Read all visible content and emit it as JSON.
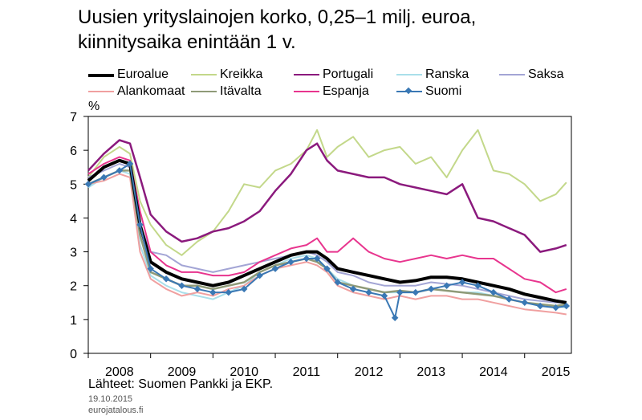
{
  "title_line1": "Uusien yrityslainojen korko, 0,25–1 milj. euroa,",
  "title_line2": "kiinnitysaika enintään 1 v.",
  "source": "Lähteet: Suomen Pankki ja EKP.",
  "date": "19.10.2015",
  "site": "eurojatalous.fi",
  "chart_data": {
    "type": "line",
    "ylabel": "%",
    "ylim": [
      0,
      7
    ],
    "yticks": [
      "0",
      "1",
      "2",
      "3",
      "4",
      "5",
      "6",
      "7"
    ],
    "xlim": [
      2008.0,
      2015.75
    ],
    "xticks": [
      "2008",
      "2009",
      "2010",
      "2011",
      "2012",
      "2013",
      "2014",
      "2015"
    ],
    "grid": false,
    "legend": "top",
    "series": [
      {
        "name": "Euroalue",
        "color": "#000000",
        "width": 4,
        "marker": false,
        "x": [
          2008.0,
          2008.25,
          2008.5,
          2008.67,
          2008.83,
          2009.0,
          2009.25,
          2009.5,
          2009.75,
          2010.0,
          2010.25,
          2010.5,
          2010.75,
          2011.0,
          2011.25,
          2011.5,
          2011.67,
          2011.83,
          2012.0,
          2012.25,
          2012.5,
          2012.75,
          2013.0,
          2013.25,
          2013.5,
          2013.75,
          2014.0,
          2014.25,
          2014.5,
          2014.75,
          2015.0,
          2015.25,
          2015.5,
          2015.67
        ],
        "y": [
          5.1,
          5.5,
          5.7,
          5.6,
          3.8,
          2.7,
          2.4,
          2.2,
          2.1,
          2.0,
          2.1,
          2.3,
          2.5,
          2.7,
          2.9,
          3.0,
          3.0,
          2.8,
          2.5,
          2.4,
          2.3,
          2.2,
          2.1,
          2.15,
          2.25,
          2.25,
          2.2,
          2.1,
          2.0,
          1.9,
          1.75,
          1.65,
          1.55,
          1.5
        ]
      },
      {
        "name": "Kreikka",
        "color": "#c3d88a",
        "width": 2,
        "marker": false,
        "x": [
          2008.0,
          2008.25,
          2008.5,
          2008.67,
          2008.83,
          2009.0,
          2009.25,
          2009.5,
          2009.75,
          2010.0,
          2010.25,
          2010.5,
          2010.75,
          2011.0,
          2011.25,
          2011.5,
          2011.67,
          2011.83,
          2012.0,
          2012.25,
          2012.5,
          2012.75,
          2013.0,
          2013.25,
          2013.5,
          2013.75,
          2014.0,
          2014.25,
          2014.5,
          2014.75,
          2015.0,
          2015.25,
          2015.5,
          2015.67
        ],
        "y": [
          5.2,
          5.8,
          6.1,
          5.9,
          4.5,
          3.8,
          3.2,
          2.9,
          3.3,
          3.6,
          4.2,
          5.0,
          4.9,
          5.4,
          5.6,
          6.0,
          6.6,
          5.8,
          6.1,
          6.4,
          5.8,
          6.0,
          6.1,
          5.6,
          5.8,
          5.2,
          6.0,
          6.6,
          5.4,
          5.3,
          5.0,
          4.5,
          4.7,
          5.05
        ]
      },
      {
        "name": "Portugali",
        "color": "#8b1a7d",
        "width": 2.5,
        "marker": false,
        "x": [
          2008.0,
          2008.25,
          2008.5,
          2008.67,
          2008.83,
          2009.0,
          2009.25,
          2009.5,
          2009.75,
          2010.0,
          2010.25,
          2010.5,
          2010.75,
          2011.0,
          2011.25,
          2011.5,
          2011.67,
          2011.83,
          2012.0,
          2012.25,
          2012.5,
          2012.75,
          2013.0,
          2013.25,
          2013.5,
          2013.75,
          2014.0,
          2014.25,
          2014.5,
          2014.75,
          2015.0,
          2015.25,
          2015.5,
          2015.67
        ],
        "y": [
          5.4,
          5.9,
          6.3,
          6.2,
          5.2,
          4.1,
          3.6,
          3.3,
          3.4,
          3.6,
          3.7,
          3.9,
          4.2,
          4.8,
          5.3,
          6.0,
          6.2,
          5.7,
          5.4,
          5.3,
          5.2,
          5.2,
          5.0,
          4.9,
          4.8,
          4.7,
          5.0,
          4.0,
          3.9,
          3.7,
          3.5,
          3.0,
          3.1,
          3.2
        ]
      },
      {
        "name": "Ranska",
        "color": "#a9dfea",
        "width": 2,
        "marker": false,
        "x": [
          2008.0,
          2008.25,
          2008.5,
          2008.67,
          2008.83,
          2009.0,
          2009.25,
          2009.5,
          2009.75,
          2010.0,
          2010.25,
          2010.5,
          2010.75,
          2011.0,
          2011.25,
          2011.5,
          2011.67,
          2011.83,
          2012.0,
          2012.25,
          2012.5,
          2012.75,
          2013.0,
          2013.25,
          2013.5,
          2013.75,
          2014.0,
          2014.25,
          2014.5,
          2014.75,
          2015.0,
          2015.25,
          2015.5,
          2015.67
        ],
        "y": [
          4.9,
          5.2,
          5.4,
          5.3,
          3.2,
          2.3,
          2.0,
          1.8,
          1.7,
          1.6,
          1.8,
          2.0,
          2.4,
          2.6,
          2.8,
          2.9,
          2.8,
          2.5,
          2.2,
          2.0,
          1.9,
          1.8,
          1.8,
          1.8,
          1.9,
          1.85,
          1.8,
          1.8,
          1.7,
          1.6,
          1.5,
          1.45,
          1.4,
          1.35
        ]
      },
      {
        "name": "Saksa",
        "color": "#a3a5d5",
        "width": 2,
        "marker": false,
        "x": [
          2008.0,
          2008.25,
          2008.5,
          2008.67,
          2008.83,
          2009.0,
          2009.25,
          2009.5,
          2009.75,
          2010.0,
          2010.25,
          2010.5,
          2010.75,
          2011.0,
          2011.25,
          2011.5,
          2011.67,
          2011.83,
          2012.0,
          2012.25,
          2012.5,
          2012.75,
          2013.0,
          2013.25,
          2013.5,
          2013.75,
          2014.0,
          2014.25,
          2014.5,
          2014.75,
          2015.0,
          2015.25,
          2015.5,
          2015.67
        ],
        "y": [
          5.2,
          5.4,
          5.6,
          5.5,
          3.8,
          3.0,
          2.9,
          2.6,
          2.5,
          2.4,
          2.5,
          2.6,
          2.7,
          2.8,
          2.9,
          3.0,
          2.9,
          2.7,
          2.4,
          2.3,
          2.1,
          2.0,
          2.0,
          2.0,
          2.1,
          2.05,
          2.0,
          1.9,
          1.8,
          1.7,
          1.6,
          1.55,
          1.5,
          1.5
        ]
      },
      {
        "name": "Alankomaat",
        "color": "#f0a0a0",
        "width": 2,
        "marker": false,
        "x": [
          2008.0,
          2008.25,
          2008.5,
          2008.67,
          2008.83,
          2009.0,
          2009.25,
          2009.5,
          2009.75,
          2010.0,
          2010.25,
          2010.5,
          2010.75,
          2011.0,
          2011.25,
          2011.5,
          2011.67,
          2011.83,
          2012.0,
          2012.25,
          2012.5,
          2012.75,
          2013.0,
          2013.25,
          2013.5,
          2013.75,
          2014.0,
          2014.25,
          2014.5,
          2014.75,
          2015.0,
          2015.25,
          2015.5,
          2015.67
        ],
        "y": [
          5.0,
          5.1,
          5.3,
          5.2,
          3.0,
          2.2,
          1.9,
          1.7,
          1.8,
          1.7,
          1.9,
          2.0,
          2.3,
          2.5,
          2.6,
          2.7,
          2.6,
          2.4,
          2.0,
          1.8,
          1.7,
          1.6,
          1.7,
          1.6,
          1.7,
          1.7,
          1.6,
          1.6,
          1.5,
          1.4,
          1.3,
          1.25,
          1.2,
          1.15
        ]
      },
      {
        "name": "Itävalta",
        "color": "#8f9a78",
        "width": 2.5,
        "marker": false,
        "x": [
          2008.0,
          2008.25,
          2008.5,
          2008.67,
          2008.83,
          2009.0,
          2009.25,
          2009.5,
          2009.75,
          2010.0,
          2010.25,
          2010.5,
          2010.75,
          2011.0,
          2011.25,
          2011.5,
          2011.67,
          2011.83,
          2012.0,
          2012.25,
          2012.5,
          2012.75,
          2013.0,
          2013.25,
          2013.5,
          2013.75,
          2014.0,
          2014.25,
          2014.5,
          2014.75,
          2015.0,
          2015.25,
          2015.5,
          2015.67
        ],
        "y": [
          5.0,
          5.2,
          5.4,
          5.4,
          3.5,
          2.4,
          2.2,
          2.0,
          2.0,
          1.9,
          2.0,
          2.1,
          2.4,
          2.6,
          2.7,
          2.8,
          2.7,
          2.5,
          2.1,
          2.0,
          1.9,
          1.8,
          1.85,
          1.8,
          1.9,
          1.85,
          1.8,
          1.75,
          1.7,
          1.6,
          1.5,
          1.45,
          1.4,
          1.45
        ]
      },
      {
        "name": "Espanja",
        "color": "#e8358e",
        "width": 2,
        "marker": false,
        "x": [
          2008.0,
          2008.25,
          2008.5,
          2008.67,
          2008.83,
          2009.0,
          2009.25,
          2009.5,
          2009.75,
          2010.0,
          2010.25,
          2010.5,
          2010.75,
          2011.0,
          2011.25,
          2011.5,
          2011.67,
          2011.83,
          2012.0,
          2012.25,
          2012.5,
          2012.75,
          2013.0,
          2013.25,
          2013.5,
          2013.75,
          2014.0,
          2014.25,
          2014.5,
          2014.75,
          2015.0,
          2015.25,
          2015.5,
          2015.67
        ],
        "y": [
          5.3,
          5.6,
          5.8,
          5.7,
          4.2,
          3.0,
          2.6,
          2.4,
          2.4,
          2.3,
          2.3,
          2.4,
          2.7,
          2.9,
          3.1,
          3.2,
          3.4,
          3.0,
          3.0,
          3.4,
          3.0,
          2.8,
          2.7,
          2.8,
          2.9,
          2.8,
          2.9,
          2.8,
          2.8,
          2.5,
          2.2,
          2.1,
          1.8,
          1.9
        ]
      },
      {
        "name": "Suomi",
        "color": "#3a78b4",
        "width": 2,
        "marker": true,
        "x": [
          2008.0,
          2008.25,
          2008.5,
          2008.67,
          2008.83,
          2009.0,
          2009.25,
          2009.5,
          2009.75,
          2010.0,
          2010.25,
          2010.5,
          2010.75,
          2011.0,
          2011.25,
          2011.5,
          2011.67,
          2011.83,
          2012.0,
          2012.25,
          2012.5,
          2012.75,
          2012.92,
          2013.0,
          2013.25,
          2013.5,
          2013.75,
          2014.0,
          2014.25,
          2014.5,
          2014.75,
          2015.0,
          2015.25,
          2015.5,
          2015.67
        ],
        "y": [
          5.0,
          5.2,
          5.4,
          5.6,
          3.8,
          2.5,
          2.2,
          2.0,
          1.9,
          1.8,
          1.8,
          1.9,
          2.3,
          2.5,
          2.7,
          2.8,
          2.8,
          2.5,
          2.1,
          1.9,
          1.8,
          1.7,
          1.05,
          1.8,
          1.8,
          1.9,
          2.0,
          2.1,
          2.0,
          1.8,
          1.6,
          1.5,
          1.4,
          1.35,
          1.4
        ]
      }
    ]
  }
}
